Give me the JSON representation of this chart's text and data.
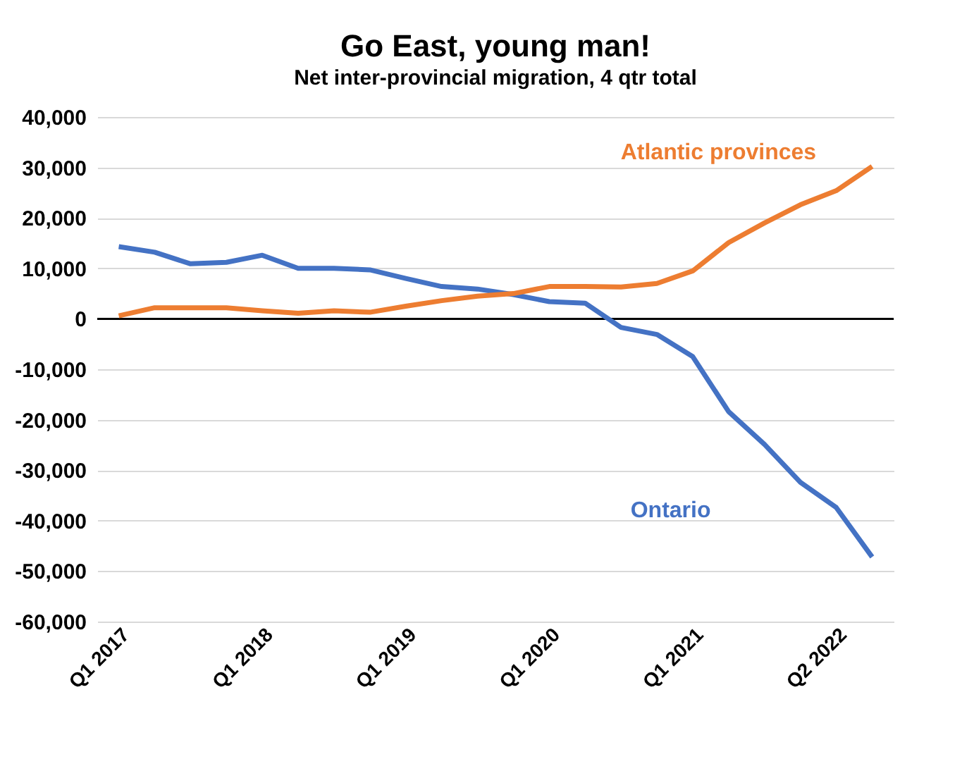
{
  "chart_data": {
    "type": "line",
    "title": "Go East, young man!",
    "subtitle": "Net inter-provincial migration, 4 qtr total",
    "categories": [
      "Q1 2017",
      null,
      null,
      null,
      "Q1 2018",
      null,
      null,
      null,
      "Q1 2019",
      null,
      null,
      null,
      "Q1 2020",
      null,
      null,
      null,
      "Q1 2021",
      null,
      null,
      null,
      "Q2 2022",
      null
    ],
    "series": [
      {
        "name": "Ontario",
        "color": "#4472c4",
        "values": [
          14300,
          13200,
          10900,
          11200,
          12600,
          10000,
          10000,
          9700,
          8000,
          6400,
          5900,
          4800,
          3400,
          3100,
          -1700,
          -3100,
          -7500,
          -18400,
          -24900,
          -32400,
          -37400,
          -47200
        ]
      },
      {
        "name": "Atlantic provinces",
        "color": "#ed7d31",
        "values": [
          600,
          2200,
          2200,
          2200,
          1600,
          1100,
          1600,
          1300,
          2500,
          3600,
          4500,
          5000,
          6400,
          6400,
          6300,
          7000,
          9500,
          15100,
          19000,
          22600,
          25400,
          30200
        ]
      }
    ],
    "ylim": [
      -60000,
      40000
    ],
    "yticks": [
      {
        "value": -60000,
        "label": "-60,000"
      },
      {
        "value": -50000,
        "label": "-50,000"
      },
      {
        "value": -40000,
        "label": "-40,000"
      },
      {
        "value": -30000,
        "label": "-30,000"
      },
      {
        "value": -20000,
        "label": "-20,000"
      },
      {
        "value": -10000,
        "label": "-10,000"
      },
      0,
      {
        "value": 10000,
        "label": "10,000"
      },
      {
        "value": 20000,
        "label": "20,000"
      },
      {
        "value": 30000,
        "label": "30,000"
      },
      {
        "value": 40000,
        "label": "40,000"
      }
    ],
    "ref_lines": [
      {
        "axis": "y",
        "value": 0,
        "color": "#000000"
      }
    ],
    "grid": "y",
    "marker": "none",
    "line_style": "solid"
  }
}
